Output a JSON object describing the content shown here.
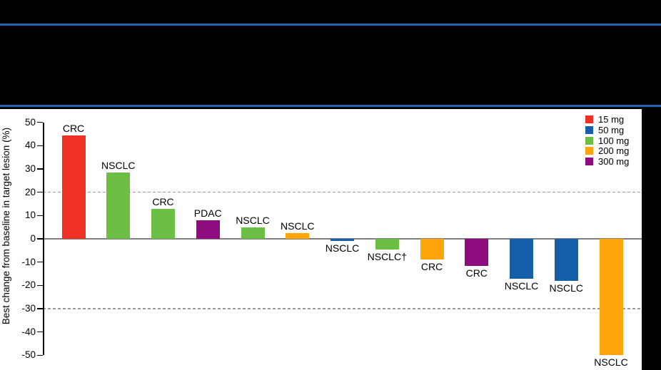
{
  "header": {
    "background_color": "#000000",
    "divider_color": "#2463B0"
  },
  "chart_data": {
    "type": "bar",
    "subtype": "waterfall",
    "title": "",
    "xlabel": "",
    "ylabel": "Best change from baseline in target lesion (%)",
    "ylim": [
      -50,
      50
    ],
    "yticks": [
      50,
      40,
      30,
      20,
      10,
      0,
      -10,
      -20,
      -30,
      -40,
      -50
    ],
    "reference_lines_dashed": [
      20,
      -30
    ],
    "zero_line": 0,
    "grid": "off",
    "legend_position": "top-right",
    "legend": [
      {
        "label": "15 mg",
        "color": "#EE3124"
      },
      {
        "label": "50 mg",
        "color": "#1560A8"
      },
      {
        "label": "100 mg",
        "color": "#6CBE45"
      },
      {
        "label": "200 mg",
        "color": "#FFA40B"
      },
      {
        "label": "300 mg",
        "color": "#8E0C7E"
      }
    ],
    "bars": [
      {
        "label": "CRC",
        "dose": "15 mg",
        "value": 44.5
      },
      {
        "label": "NSCLC",
        "dose": "100 mg",
        "value": 28.5
      },
      {
        "label": "CRC",
        "dose": "100 mg",
        "value": 13
      },
      {
        "label": "PDAC",
        "dose": "300 mg",
        "value": 8
      },
      {
        "label": "NSCLC",
        "dose": "100 mg",
        "value": 5
      },
      {
        "label": "NSCLC",
        "dose": "200 mg",
        "value": 2.5
      },
      {
        "label": "NSCLC",
        "dose": "50 mg",
        "value": -1
      },
      {
        "label": "NSCLC†",
        "dose": "100 mg",
        "value": -4.5
      },
      {
        "label": "CRC",
        "dose": "200 mg",
        "value": -9
      },
      {
        "label": "CRC",
        "dose": "300 mg",
        "value": -11.5
      },
      {
        "label": "NSCLC",
        "dose": "50 mg",
        "value": -17
      },
      {
        "label": "NSCLC",
        "dose": "50 mg",
        "value": -18
      },
      {
        "label": "NSCLC",
        "dose": "200 mg",
        "value": -50
      }
    ]
  }
}
